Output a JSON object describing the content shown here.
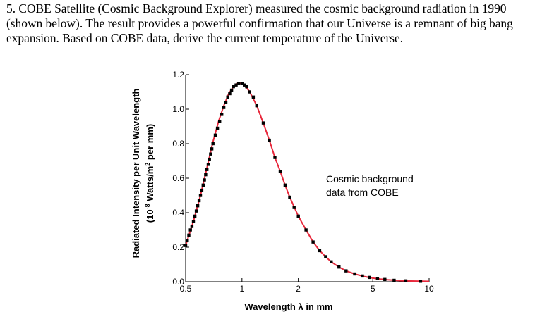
{
  "question": {
    "lines": [
      "5. COBE Satellite (Cosmic Background Explorer) measured the cosmic background radiation in 1990",
      "(shown below). The result provides a powerful confirmation that our Universe is a remnant of big bang",
      "expansion. Based on COBE data, derive the current temperature of the Universe."
    ]
  },
  "chart_data": {
    "type": "scatter",
    "title": "",
    "xlabel": "Wavelength λ in mm",
    "ylabel_line1": "Radiated Intensity per Unit Wavelength",
    "ylabel_line2": "(10",
    "ylabel_sup1": "-8",
    "ylabel_line2b": " Watts/m",
    "ylabel_sup2": "2",
    "ylabel_line2c": " per mm)",
    "x_scale": "log",
    "xlim": [
      0.5,
      10
    ],
    "ylim": [
      0.0,
      1.2
    ],
    "x_ticks": [
      "0.5",
      "1",
      "2",
      "5",
      "10"
    ],
    "x_tick_values": [
      0.5,
      1,
      2,
      5,
      10
    ],
    "y_ticks": [
      "0.0",
      "0.2",
      "0.4",
      "0.6",
      "0.8",
      "1.0",
      "1.2"
    ],
    "y_tick_values": [
      0.0,
      0.2,
      0.4,
      0.6,
      0.8,
      1.0,
      1.2
    ],
    "annotation": [
      "Cosmic background",
      "data from COBE"
    ],
    "curve_color": "#e8283c",
    "marker_color": "#000000",
    "curve": {
      "x": [
        0.5,
        0.55,
        0.6,
        0.65,
        0.7,
        0.75,
        0.8,
        0.85,
        0.9,
        0.95,
        1.0,
        1.05,
        1.1,
        1.2,
        1.3,
        1.4,
        1.5,
        1.6,
        1.7,
        1.8,
        2.0,
        2.2,
        2.4,
        2.6,
        2.8,
        3.0,
        3.3,
        3.6,
        4.0,
        4.5,
        5.0,
        5.5,
        6.0,
        7.0,
        8.0,
        9.0,
        10.0
      ],
      "y": [
        0.21,
        0.35,
        0.5,
        0.66,
        0.81,
        0.93,
        1.02,
        1.09,
        1.13,
        1.15,
        1.15,
        1.13,
        1.1,
        1.02,
        0.92,
        0.82,
        0.72,
        0.64,
        0.56,
        0.49,
        0.38,
        0.3,
        0.23,
        0.18,
        0.145,
        0.115,
        0.085,
        0.063,
        0.045,
        0.03,
        0.021,
        0.015,
        0.011,
        0.006,
        0.004,
        0.003,
        0.002
      ]
    },
    "points": {
      "x": [
        0.5,
        0.51,
        0.52,
        0.53,
        0.54,
        0.55,
        0.56,
        0.57,
        0.58,
        0.59,
        0.6,
        0.61,
        0.62,
        0.63,
        0.64,
        0.65,
        0.66,
        0.67,
        0.68,
        0.69,
        0.7,
        0.72,
        0.74,
        0.76,
        0.78,
        0.8,
        0.82,
        0.84,
        0.86,
        0.88,
        0.9,
        0.93,
        0.96,
        1.0,
        1.03,
        1.06,
        1.1,
        1.15,
        1.2,
        1.3,
        1.4,
        1.5,
        1.6,
        1.7,
        1.8,
        1.9,
        2.0,
        2.2,
        2.4,
        2.6,
        2.8,
        3.0,
        3.3,
        3.6,
        4.0,
        4.4,
        4.8,
        5.3,
        5.8,
        6.5,
        7.5,
        9.0
      ],
      "y": [
        0.21,
        0.24,
        0.27,
        0.3,
        0.32,
        0.35,
        0.38,
        0.41,
        0.44,
        0.47,
        0.5,
        0.53,
        0.56,
        0.59,
        0.62,
        0.65,
        0.68,
        0.71,
        0.74,
        0.77,
        0.8,
        0.85,
        0.89,
        0.93,
        0.97,
        1.01,
        1.04,
        1.07,
        1.09,
        1.11,
        1.13,
        1.14,
        1.15,
        1.15,
        1.14,
        1.13,
        1.1,
        1.07,
        1.02,
        0.92,
        0.82,
        0.72,
        0.64,
        0.56,
        0.49,
        0.43,
        0.38,
        0.3,
        0.23,
        0.18,
        0.145,
        0.115,
        0.085,
        0.063,
        0.045,
        0.033,
        0.025,
        0.018,
        0.013,
        0.008,
        0.005,
        0.003
      ]
    }
  }
}
